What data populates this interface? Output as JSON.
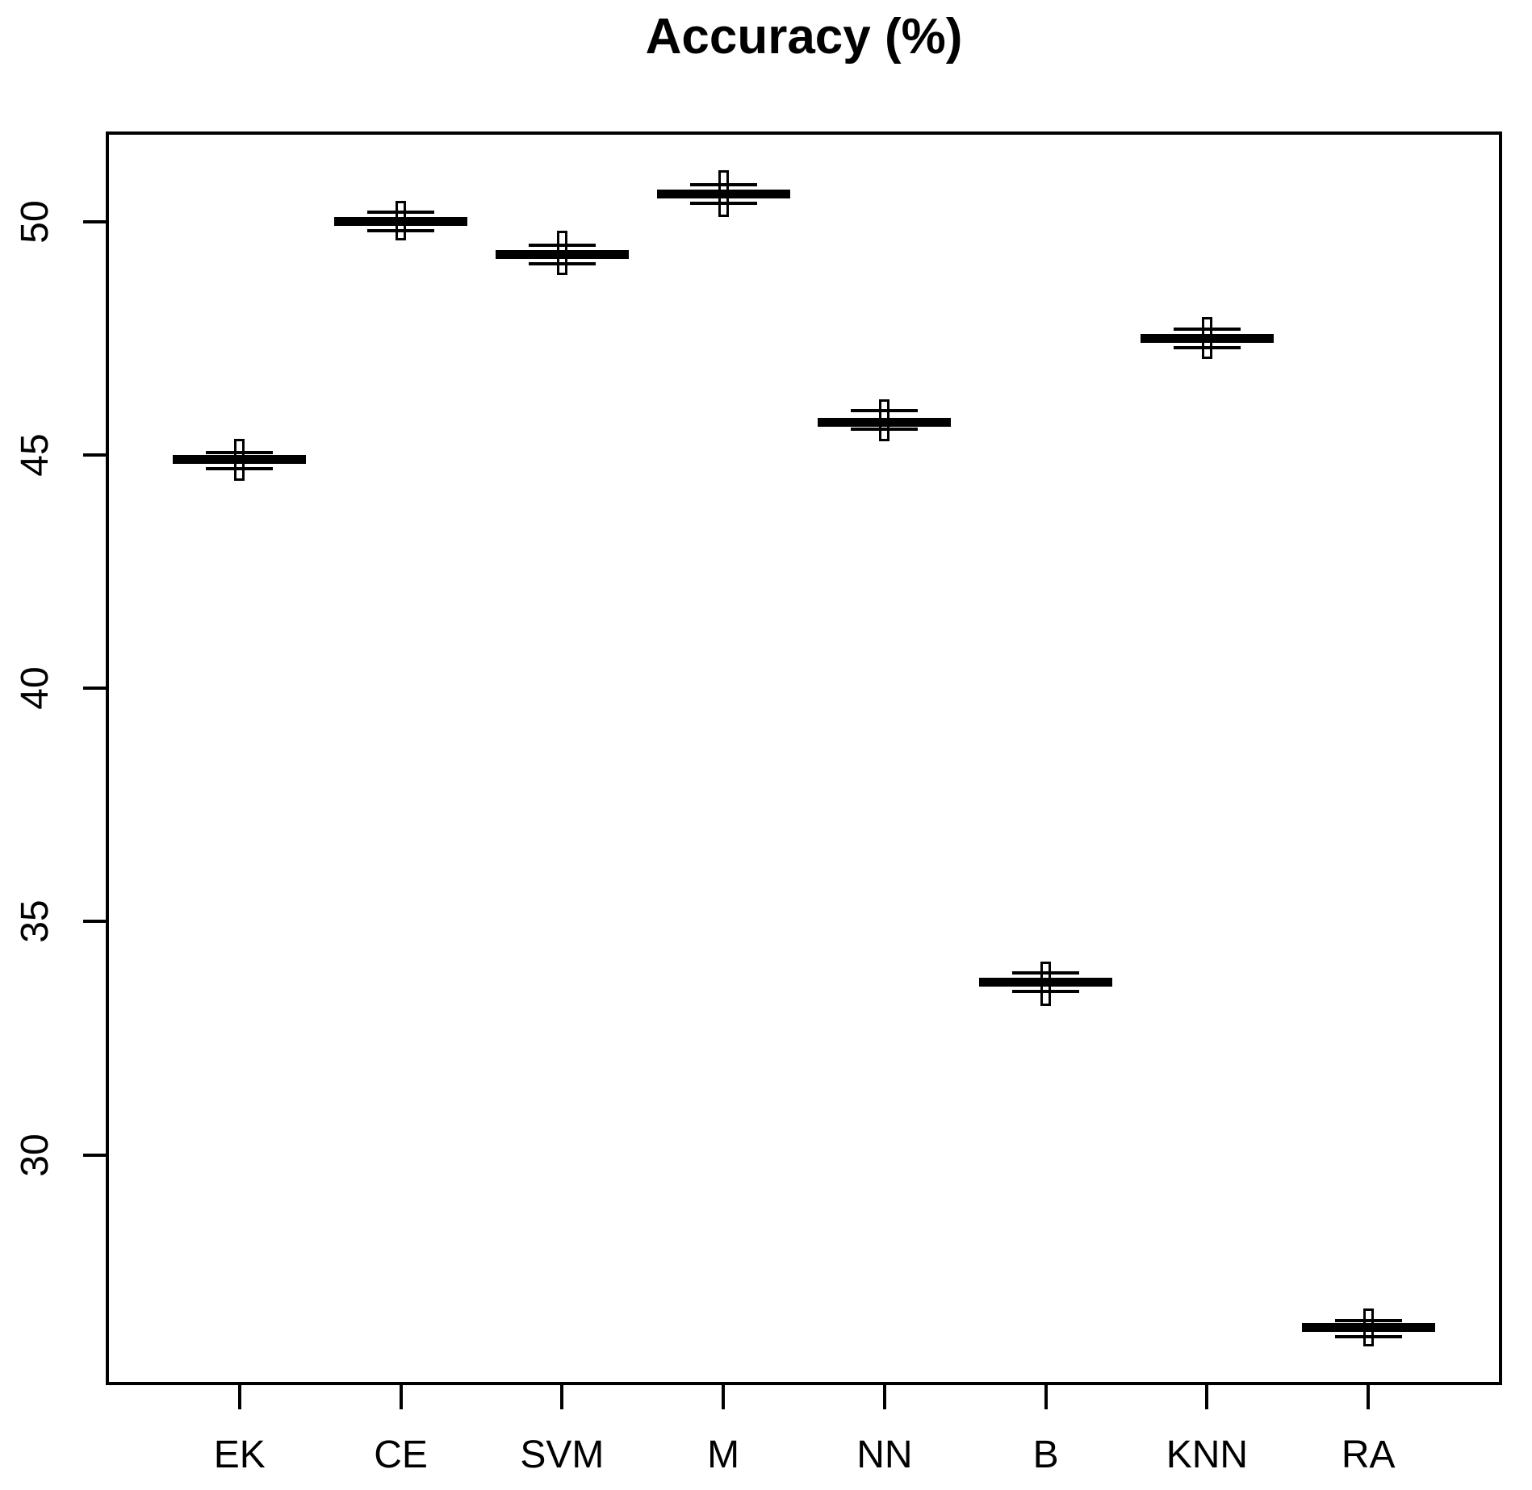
{
  "chart_data": {
    "type": "boxplot",
    "title": "Accuracy (%)",
    "xlabel": "",
    "ylabel": "",
    "categories": [
      "EK",
      "CE",
      "SVM",
      "M",
      "NN",
      "B",
      "KNN",
      "RA"
    ],
    "yticks": [
      30,
      35,
      40,
      45,
      50
    ],
    "ylim": [
      25.1,
      51.9
    ],
    "grid": false,
    "legend": "none",
    "colors": {
      "foreground": "#000000",
      "background": "#ffffff"
    },
    "groups": [
      {
        "label": "EK",
        "median": 44.9,
        "q1": 44.7,
        "q3": 45.05,
        "whisker_min": 44.45,
        "whisker_max": 45.35
      },
      {
        "label": "CE",
        "median": 50.0,
        "q1": 49.8,
        "q3": 50.2,
        "whisker_min": 49.6,
        "whisker_max": 50.45
      },
      {
        "label": "SVM",
        "median": 49.3,
        "q1": 49.1,
        "q3": 49.5,
        "whisker_min": 48.85,
        "whisker_max": 49.8
      },
      {
        "label": "M",
        "median": 50.6,
        "q1": 50.4,
        "q3": 50.8,
        "whisker_min": 50.1,
        "whisker_max": 51.1
      },
      {
        "label": "NN",
        "median": 45.7,
        "q1": 45.55,
        "q3": 45.95,
        "whisker_min": 45.3,
        "whisker_max": 46.2
      },
      {
        "label": "B",
        "median": 33.7,
        "q1": 33.5,
        "q3": 33.9,
        "whisker_min": 33.2,
        "whisker_max": 34.15
      },
      {
        "label": "KNN",
        "median": 47.5,
        "q1": 47.3,
        "q3": 47.7,
        "whisker_min": 47.05,
        "whisker_max": 47.95
      },
      {
        "label": "RA",
        "median": 26.3,
        "q1": 26.1,
        "q3": 26.45,
        "whisker_min": 25.9,
        "whisker_max": 26.7
      }
    ]
  }
}
